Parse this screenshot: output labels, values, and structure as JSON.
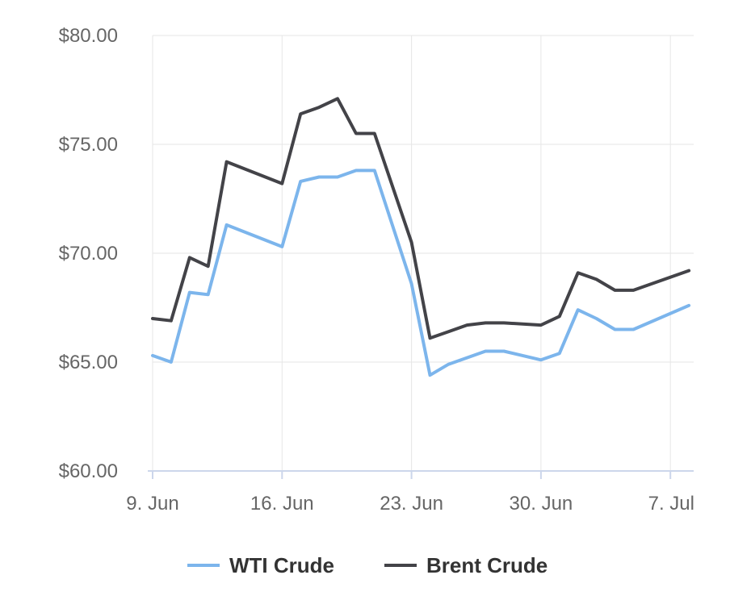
{
  "chart_data": {
    "type": "line",
    "title": "",
    "xlabel": "",
    "ylabel": "",
    "ylim": [
      60,
      80
    ],
    "y_ticks": [
      "$60.00",
      "$65.00",
      "$70.00",
      "$75.00",
      "$80.00"
    ],
    "y_tick_values": [
      60,
      65,
      70,
      75,
      80
    ],
    "x_ticks": [
      "9. Jun",
      "16. Jun",
      "23. Jun",
      "30. Jun",
      "7. Jul"
    ],
    "x_tick_days": [
      0,
      7,
      14,
      21,
      28
    ],
    "x": [
      0,
      1,
      2,
      3,
      4,
      7,
      8,
      9,
      10,
      11,
      12,
      14,
      15,
      16,
      17,
      18,
      19,
      21,
      22,
      23,
      24,
      25,
      26,
      29
    ],
    "series": [
      {
        "name": "WTI Crude",
        "color": "#7cb5ec",
        "values": [
          65.3,
          65.0,
          68.2,
          68.1,
          71.3,
          70.3,
          73.3,
          73.5,
          73.5,
          73.8,
          73.8,
          68.6,
          64.4,
          64.9,
          65.2,
          65.5,
          65.5,
          65.1,
          65.4,
          67.4,
          67.0,
          66.5,
          66.5,
          67.6
        ]
      },
      {
        "name": "Brent Crude",
        "color": "#434348",
        "values": [
          67.0,
          66.9,
          69.8,
          69.4,
          74.2,
          73.2,
          76.4,
          76.7,
          77.1,
          75.5,
          75.5,
          70.5,
          66.1,
          66.4,
          66.7,
          66.8,
          66.8,
          66.7,
          67.1,
          69.1,
          68.8,
          68.3,
          68.3,
          69.2
        ]
      }
    ],
    "grid": true,
    "legend_position": "bottom-center"
  }
}
